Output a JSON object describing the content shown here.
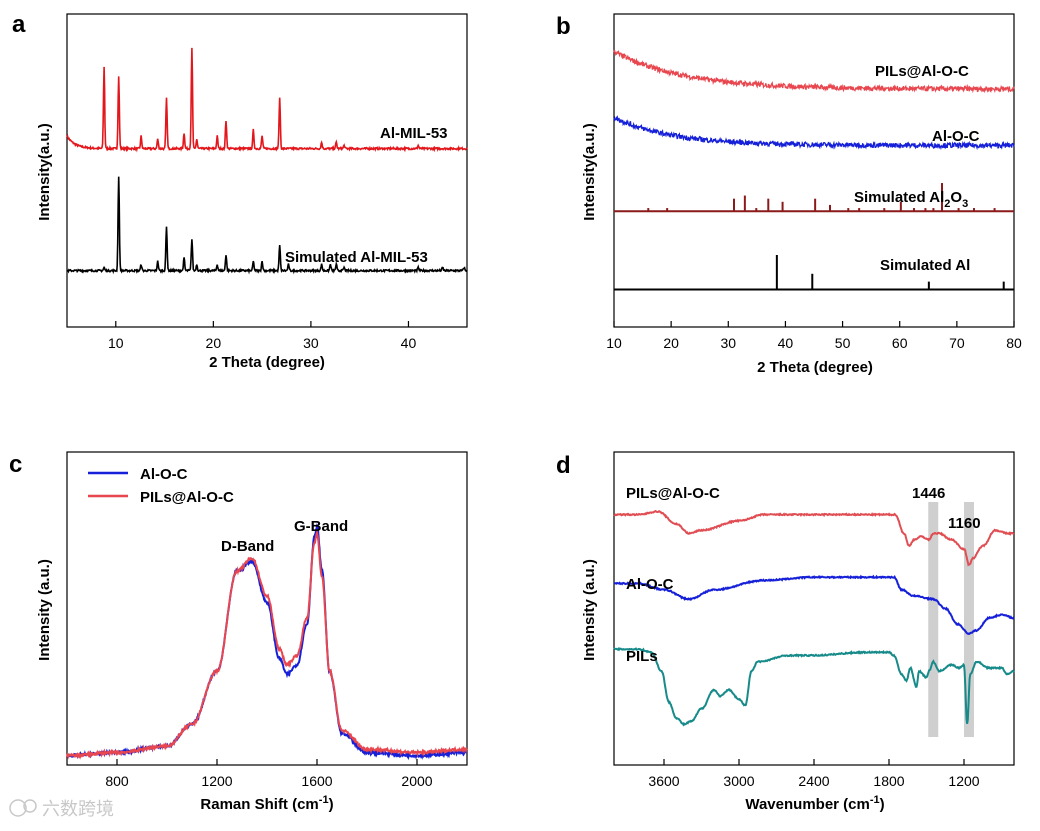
{
  "watermark": "六数跨境",
  "chart_data": [
    {
      "panel": "a",
      "type": "line",
      "xlabel": "2 Theta (degree)",
      "ylabel": "Intensity(a.u.)",
      "xlim": [
        5,
        46
      ],
      "xticks": [
        10,
        20,
        30,
        40
      ],
      "series": [
        {
          "name": "Al-MIL-53",
          "label": "Al-MIL-53",
          "color": "#e3161b",
          "baseline": 0.57,
          "peaks": [
            [
              8.8,
              0.26
            ],
            [
              10.3,
              0.23
            ],
            [
              12.6,
              0.04
            ],
            [
              14.3,
              0.03
            ],
            [
              15.2,
              0.16
            ],
            [
              17.0,
              0.05
            ],
            [
              17.8,
              0.32
            ],
            [
              18.3,
              0.03
            ],
            [
              20.4,
              0.04
            ],
            [
              21.3,
              0.09
            ],
            [
              24.1,
              0.06
            ],
            [
              25.0,
              0.04
            ],
            [
              26.8,
              0.16
            ],
            [
              31.1,
              0.02
            ],
            [
              32.6,
              0.02
            ],
            [
              33.4,
              0.01
            ],
            [
              41.0,
              0.01
            ]
          ],
          "start_rise": 0.04
        },
        {
          "name": "Simulated Al-MIL-53",
          "label": "Simulated Al-MIL-53",
          "color": "#000000",
          "baseline": 0.18,
          "peaks": [
            [
              8.8,
              0.01
            ],
            [
              10.3,
              0.3
            ],
            [
              12.6,
              0.02
            ],
            [
              14.3,
              0.03
            ],
            [
              15.2,
              0.14
            ],
            [
              17.0,
              0.04
            ],
            [
              17.8,
              0.1
            ],
            [
              18.3,
              0.02
            ],
            [
              20.4,
              0.02
            ],
            [
              21.3,
              0.05
            ],
            [
              24.1,
              0.03
            ],
            [
              25.0,
              0.03
            ],
            [
              26.8,
              0.08
            ],
            [
              27.7,
              0.02
            ],
            [
              31.1,
              0.02
            ],
            [
              32.0,
              0.02
            ],
            [
              32.6,
              0.02
            ],
            [
              33.4,
              0.01
            ],
            [
              41.0,
              0.01
            ],
            [
              43.5,
              0.01
            ],
            [
              45.7,
              0.01
            ]
          ]
        }
      ]
    },
    {
      "panel": "b",
      "type": "line",
      "xlabel": "2 Theta (degree)",
      "ylabel": "Intensity(a.u.)",
      "xlim": [
        10,
        80
      ],
      "xticks": [
        10,
        20,
        30,
        40,
        50,
        60,
        70,
        80
      ],
      "series": [
        {
          "name": "PILs@Al-O-C",
          "label": "PILs@Al-O-C",
          "color": "#e8474f",
          "start": 0.88,
          "end": 0.76,
          "decay": 12
        },
        {
          "name": "Al-O-C",
          "label": "Al-O-C",
          "color": "#1520d8",
          "start": 0.67,
          "end": 0.58,
          "decay": 10
        },
        {
          "name": "Simulated Al2O3",
          "label": "Simulated Al",
          "label_sub1": "2",
          "label_mid": "O",
          "label_sub2": "3",
          "color": "#8b1a1a",
          "baseline": 0.37,
          "sticks": [
            [
              16.0,
              0.01
            ],
            [
              19.3,
              0.01
            ],
            [
              31.0,
              0.04
            ],
            [
              32.9,
              0.05
            ],
            [
              34.9,
              0.01
            ],
            [
              37.0,
              0.04
            ],
            [
              39.5,
              0.03
            ],
            [
              45.2,
              0.04
            ],
            [
              47.8,
              0.02
            ],
            [
              51.0,
              0.01
            ],
            [
              52.9,
              0.01
            ],
            [
              57.3,
              0.01
            ],
            [
              60.2,
              0.03
            ],
            [
              62.5,
              0.01
            ],
            [
              64.5,
              0.01
            ],
            [
              65.9,
              0.01
            ],
            [
              67.4,
              0.09
            ],
            [
              70.3,
              0.01
            ],
            [
              73.0,
              0.01
            ],
            [
              76.6,
              0.01
            ]
          ]
        },
        {
          "name": "Simulated Al",
          "label": "Simulated Al",
          "color": "#000000",
          "baseline": 0.12,
          "sticks": [
            [
              38.5,
              0.11
            ],
            [
              44.7,
              0.05
            ],
            [
              65.1,
              0.025
            ],
            [
              78.2,
              0.025
            ]
          ]
        }
      ]
    },
    {
      "panel": "c",
      "type": "line",
      "xlabel": "Raman Shift (cm",
      "xlabel_sup": "-1",
      "xlabel_end": ")",
      "ylabel": "Intensity (a.u.)",
      "xlim": [
        600,
        2200
      ],
      "xticks": [
        800,
        1200,
        1600,
        2000
      ],
      "annotations": [
        "D-Band",
        "G-Band"
      ],
      "legend": [
        {
          "name": "Al-O-C",
          "color": "#1520d8"
        },
        {
          "name": "PILs@Al-O-C",
          "color": "#e8474f"
        }
      ],
      "series": [
        {
          "name": "Al-O-C",
          "color": "#1520d8",
          "points": [
            [
              600,
              0.03
            ],
            [
              800,
              0.04
            ],
            [
              1000,
              0.06
            ],
            [
              1100,
              0.13
            ],
            [
              1200,
              0.3
            ],
            [
              1280,
              0.62
            ],
            [
              1340,
              0.65
            ],
            [
              1400,
              0.52
            ],
            [
              1450,
              0.34
            ],
            [
              1480,
              0.29
            ],
            [
              1520,
              0.32
            ],
            [
              1560,
              0.45
            ],
            [
              1590,
              0.73
            ],
            [
              1600,
              0.76
            ],
            [
              1620,
              0.62
            ],
            [
              1650,
              0.3
            ],
            [
              1700,
              0.1
            ],
            [
              1800,
              0.04
            ],
            [
              2000,
              0.03
            ],
            [
              2200,
              0.04
            ]
          ]
        },
        {
          "name": "PILs@Al-O-C",
          "color": "#e8474f",
          "points": [
            [
              600,
              0.03
            ],
            [
              800,
              0.04
            ],
            [
              1000,
              0.06
            ],
            [
              1100,
              0.13
            ],
            [
              1200,
              0.3
            ],
            [
              1280,
              0.62
            ],
            [
              1340,
              0.66
            ],
            [
              1400,
              0.54
            ],
            [
              1450,
              0.37
            ],
            [
              1480,
              0.32
            ],
            [
              1520,
              0.35
            ],
            [
              1560,
              0.47
            ],
            [
              1590,
              0.71
            ],
            [
              1600,
              0.74
            ],
            [
              1620,
              0.6
            ],
            [
              1650,
              0.3
            ],
            [
              1700,
              0.11
            ],
            [
              1800,
              0.05
            ],
            [
              2000,
              0.04
            ],
            [
              2200,
              0.05
            ]
          ]
        }
      ]
    },
    {
      "panel": "d",
      "type": "line",
      "xlabel": "Wavenumber (cm",
      "xlabel_sup": "-1",
      "xlabel_end": ")",
      "ylabel": "Intensity (a.u.)",
      "xlim": [
        4000,
        800
      ],
      "xticks": [
        3600,
        3000,
        2400,
        1800,
        1200
      ],
      "annotations": [
        "1446",
        "1160"
      ],
      "bands": [
        1446,
        1160
      ],
      "series": [
        {
          "name": "PILs@Al-O-C",
          "label": "PILs@Al-O-C",
          "color": "#e04e54",
          "points": [
            [
              4000,
              0.8
            ],
            [
              3800,
              0.8
            ],
            [
              3650,
              0.81
            ],
            [
              3500,
              0.77
            ],
            [
              3400,
              0.74
            ],
            [
              3300,
              0.75
            ],
            [
              3000,
              0.78
            ],
            [
              2800,
              0.8
            ],
            [
              2400,
              0.8
            ],
            [
              2000,
              0.8
            ],
            [
              1750,
              0.8
            ],
            [
              1680,
              0.74
            ],
            [
              1640,
              0.7
            ],
            [
              1600,
              0.72
            ],
            [
              1540,
              0.73
            ],
            [
              1480,
              0.72
            ],
            [
              1446,
              0.74
            ],
            [
              1400,
              0.74
            ],
            [
              1300,
              0.72
            ],
            [
              1200,
              0.69
            ],
            [
              1160,
              0.64
            ],
            [
              1130,
              0.66
            ],
            [
              1050,
              0.7
            ],
            [
              950,
              0.75
            ],
            [
              850,
              0.74
            ],
            [
              800,
              0.74
            ]
          ]
        },
        {
          "name": "Al-O-C",
          "label": "Al-O-C",
          "color": "#1520d8",
          "points": [
            [
              4000,
              0.58
            ],
            [
              3800,
              0.58
            ],
            [
              3600,
              0.56
            ],
            [
              3400,
              0.53
            ],
            [
              3200,
              0.56
            ],
            [
              2800,
              0.59
            ],
            [
              2400,
              0.6
            ],
            [
              2000,
              0.6
            ],
            [
              1760,
              0.6
            ],
            [
              1700,
              0.56
            ],
            [
              1600,
              0.54
            ],
            [
              1446,
              0.53
            ],
            [
              1350,
              0.5
            ],
            [
              1250,
              0.45
            ],
            [
              1160,
              0.42
            ],
            [
              1100,
              0.43
            ],
            [
              1000,
              0.47
            ],
            [
              900,
              0.48
            ],
            [
              800,
              0.47
            ]
          ]
        },
        {
          "name": "PILs",
          "label": "PILs",
          "color": "#178a8a",
          "points": [
            [
              4000,
              0.37
            ],
            [
              3800,
              0.37
            ],
            [
              3700,
              0.36
            ],
            [
              3620,
              0.3
            ],
            [
              3560,
              0.2
            ],
            [
              3500,
              0.15
            ],
            [
              3440,
              0.13
            ],
            [
              3380,
              0.14
            ],
            [
              3300,
              0.18
            ],
            [
              3200,
              0.24
            ],
            [
              3150,
              0.22
            ],
            [
              3080,
              0.24
            ],
            [
              3000,
              0.21
            ],
            [
              2950,
              0.19
            ],
            [
              2900,
              0.3
            ],
            [
              2850,
              0.33
            ],
            [
              2600,
              0.35
            ],
            [
              2400,
              0.35
            ],
            [
              2000,
              0.36
            ],
            [
              1800,
              0.36
            ],
            [
              1760,
              0.35
            ],
            [
              1700,
              0.29
            ],
            [
              1660,
              0.27
            ],
            [
              1630,
              0.31
            ],
            [
              1580,
              0.25
            ],
            [
              1560,
              0.3
            ],
            [
              1500,
              0.28
            ],
            [
              1480,
              0.3
            ],
            [
              1446,
              0.33
            ],
            [
              1400,
              0.3
            ],
            [
              1300,
              0.32
            ],
            [
              1240,
              0.31
            ],
            [
              1200,
              0.32
            ],
            [
              1175,
              0.13
            ],
            [
              1150,
              0.29
            ],
            [
              1100,
              0.33
            ],
            [
              1000,
              0.31
            ],
            [
              900,
              0.31
            ],
            [
              850,
              0.29
            ],
            [
              800,
              0.3
            ]
          ]
        }
      ]
    }
  ]
}
